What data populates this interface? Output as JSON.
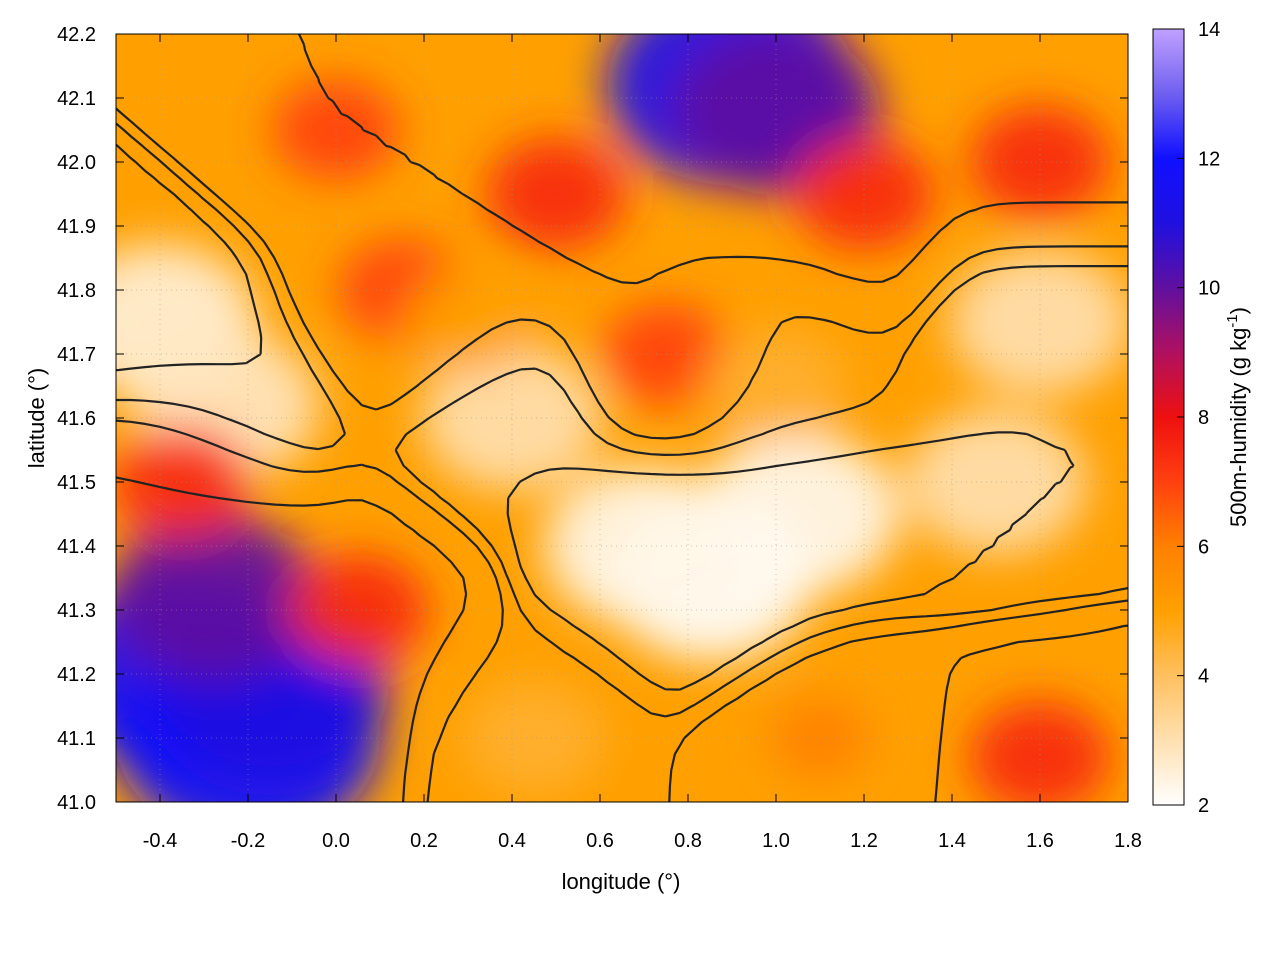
{
  "chart_data": {
    "type": "heatmap",
    "title": "",
    "xlabel": "longitude (°)",
    "ylabel": "latitude (°)",
    "colorbar_label": "500m-humidity (g kg-1)",
    "colorbar_label_main": "500m-humidity (g kg",
    "colorbar_label_sup": "-1",
    "colorbar_label_tail": ")",
    "xlim": [
      -0.5,
      1.8
    ],
    "ylim": [
      41.0,
      42.2
    ],
    "clim": [
      2,
      14
    ],
    "grid": true,
    "colormap": [
      {
        "value": 2,
        "color": "#ffffff"
      },
      {
        "value": 3,
        "color": "#ffe0b0"
      },
      {
        "value": 4,
        "color": "#ffc060"
      },
      {
        "value": 5,
        "color": "#ffa000"
      },
      {
        "value": 6,
        "color": "#ff8000"
      },
      {
        "value": 7,
        "color": "#ff4010"
      },
      {
        "value": 8,
        "color": "#ee1010"
      },
      {
        "value": 9,
        "color": "#b01060"
      },
      {
        "value": 10,
        "color": "#6010a0"
      },
      {
        "value": 11,
        "color": "#2010e0"
      },
      {
        "value": 12,
        "color": "#1010ff"
      },
      {
        "value": 13,
        "color": "#7060f0"
      },
      {
        "value": 14,
        "color": "#c0a0ff"
      }
    ],
    "x_ticks": [
      "-0.4",
      "-0.2",
      "0.0",
      "0.2",
      "0.4",
      "0.6",
      "0.8",
      "1.0",
      "1.2",
      "1.4",
      "1.6",
      "1.8"
    ],
    "y_ticks": [
      "41.0",
      "41.1",
      "41.2",
      "41.3",
      "41.4",
      "41.5",
      "41.6",
      "41.7",
      "41.8",
      "41.9",
      "42.0",
      "42.1",
      "42.2"
    ],
    "colorbar_ticks": [
      "2",
      "4",
      "6",
      "8",
      "10",
      "12",
      "14"
    ],
    "humidity_field_features": [
      {
        "lon": -0.35,
        "lat": 41.2,
        "value": 11.5
      },
      {
        "lon": -0.2,
        "lat": 41.1,
        "value": 12.0
      },
      {
        "lon": -0.15,
        "lat": 41.18,
        "value": 11.0
      },
      {
        "lon": -0.28,
        "lat": 41.32,
        "value": 10.0
      },
      {
        "lon": 0.9,
        "lat": 42.12,
        "value": 11.5
      },
      {
        "lon": 1.0,
        "lat": 42.08,
        "value": 10.0
      },
      {
        "lon": 0.85,
        "lat": 41.35,
        "value": 2.0
      },
      {
        "lon": 1.05,
        "lat": 41.45,
        "value": 2.2
      },
      {
        "lon": 0.7,
        "lat": 41.4,
        "value": 2.3
      },
      {
        "lon": -0.4,
        "lat": 41.75,
        "value": 2.5
      },
      {
        "lon": -0.25,
        "lat": 41.62,
        "value": 2.8
      },
      {
        "lon": 0.4,
        "lat": 41.6,
        "value": 3.0
      },
      {
        "lon": 1.5,
        "lat": 41.5,
        "value": 3.0
      },
      {
        "lon": 1.6,
        "lat": 41.75,
        "value": 3.0
      },
      {
        "lon": 0.5,
        "lat": 41.95,
        "value": 7.5
      },
      {
        "lon": 1.2,
        "lat": 41.95,
        "value": 7.5
      },
      {
        "lon": 1.6,
        "lat": 42.0,
        "value": 7.5
      },
      {
        "lon": 0.0,
        "lat": 42.05,
        "value": 7.0
      },
      {
        "lon": 0.05,
        "lat": 41.3,
        "value": 7.5
      },
      {
        "lon": -0.35,
        "lat": 41.5,
        "value": 7.5
      },
      {
        "lon": 1.6,
        "lat": 41.07,
        "value": 7.5
      },
      {
        "lon": 1.1,
        "lat": 41.1,
        "value": 6.0
      },
      {
        "lon": 0.45,
        "lat": 41.1,
        "value": 4.5
      },
      {
        "lon": 0.15,
        "lat": 41.8,
        "value": 7.0
      },
      {
        "lon": 0.75,
        "lat": 41.7,
        "value": 7.0
      },
      {
        "lon": 1.0,
        "lat": 41.65,
        "value": 4.5
      },
      {
        "lon": 0.3,
        "lat": 41.75,
        "value": 5.0
      }
    ]
  }
}
